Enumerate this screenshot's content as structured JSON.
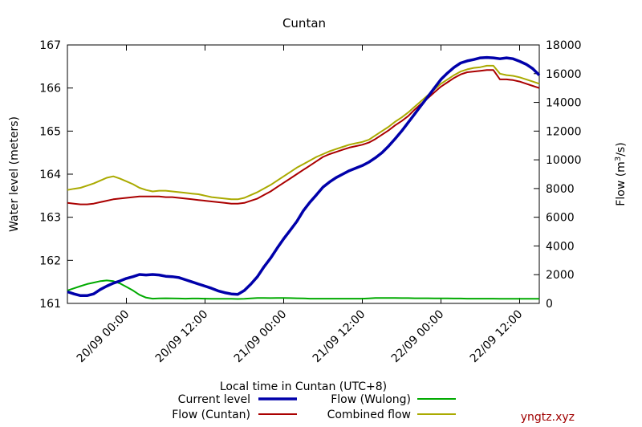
{
  "chart_data": {
    "type": "line",
    "title": "Cuntan",
    "xlabel": "Local time in Cuntan (UTC+8)",
    "ylabel_left": "Water level (meters)",
    "ylabel_right_prefix": "Flow (m",
    "ylabel_right_sup": "3",
    "ylabel_right_suffix": "/s)",
    "x_unit": "hours since 19/09 15:00",
    "x_range": [
      0,
      72
    ],
    "x_ticks": [
      {
        "x": 9,
        "label": "20/09 00:00"
      },
      {
        "x": 21,
        "label": "20/09 12:00"
      },
      {
        "x": 33,
        "label": "21/09 00:00"
      },
      {
        "x": 45,
        "label": "21/09 12:00"
      },
      {
        "x": 57,
        "label": "22/09 00:00"
      },
      {
        "x": 69,
        "label": "22/09 12:00"
      }
    ],
    "y_left_range": [
      161,
      167
    ],
    "y_left_ticks": [
      "161",
      "162",
      "163",
      "164",
      "165",
      "166",
      "167"
    ],
    "y_right_range": [
      0,
      18000
    ],
    "y_right_ticks": [
      "0",
      "2000",
      "4000",
      "6000",
      "8000",
      "10000",
      "12000",
      "14000",
      "16000",
      "18000"
    ],
    "grid": false,
    "legend_position": "bottom",
    "series": [
      {
        "name": "Current level",
        "axis": "left",
        "color": "#0000aa",
        "points": [
          [
            0,
            161.27
          ],
          [
            1,
            161.22
          ],
          [
            2,
            161.18
          ],
          [
            3,
            161.18
          ],
          [
            4,
            161.22
          ],
          [
            5,
            161.32
          ],
          [
            6,
            161.4
          ],
          [
            7,
            161.47
          ],
          [
            8,
            161.52
          ],
          [
            9,
            161.58
          ],
          [
            10,
            161.62
          ],
          [
            11,
            161.67
          ],
          [
            12,
            161.66
          ],
          [
            13,
            161.67
          ],
          [
            14,
            161.66
          ],
          [
            15,
            161.63
          ],
          [
            16,
            161.62
          ],
          [
            17,
            161.6
          ],
          [
            18,
            161.55
          ],
          [
            19,
            161.5
          ],
          [
            20,
            161.45
          ],
          [
            21,
            161.4
          ],
          [
            22,
            161.35
          ],
          [
            23,
            161.29
          ],
          [
            24,
            161.25
          ],
          [
            25,
            161.22
          ],
          [
            26,
            161.21
          ],
          [
            27,
            161.3
          ],
          [
            28,
            161.45
          ],
          [
            29,
            161.62
          ],
          [
            30,
            161.85
          ],
          [
            31,
            162.05
          ],
          [
            32,
            162.28
          ],
          [
            33,
            162.5
          ],
          [
            34,
            162.7
          ],
          [
            35,
            162.9
          ],
          [
            36,
            163.15
          ],
          [
            37,
            163.35
          ],
          [
            38,
            163.52
          ],
          [
            39,
            163.7
          ],
          [
            40,
            163.82
          ],
          [
            41,
            163.92
          ],
          [
            42,
            164.0
          ],
          [
            43,
            164.08
          ],
          [
            44,
            164.14
          ],
          [
            45,
            164.2
          ],
          [
            46,
            164.28
          ],
          [
            47,
            164.38
          ],
          [
            48,
            164.5
          ],
          [
            49,
            164.65
          ],
          [
            50,
            164.82
          ],
          [
            51,
            165.0
          ],
          [
            52,
            165.2
          ],
          [
            53,
            165.4
          ],
          [
            54,
            165.6
          ],
          [
            55,
            165.8
          ],
          [
            56,
            166.0
          ],
          [
            57,
            166.2
          ],
          [
            58,
            166.35
          ],
          [
            59,
            166.48
          ],
          [
            60,
            166.58
          ],
          [
            61,
            166.63
          ],
          [
            62,
            166.66
          ],
          [
            63,
            166.7
          ],
          [
            64,
            166.71
          ],
          [
            65,
            166.7
          ],
          [
            66,
            166.68
          ],
          [
            67,
            166.7
          ],
          [
            68,
            166.68
          ],
          [
            69,
            166.62
          ],
          [
            70,
            166.55
          ],
          [
            71,
            166.45
          ],
          [
            72,
            166.3
          ]
        ]
      },
      {
        "name": "Flow (Cuntan)",
        "axis": "right",
        "color": "#aa0000",
        "points": [
          [
            0,
            7000
          ],
          [
            1,
            6950
          ],
          [
            2,
            6900
          ],
          [
            3,
            6900
          ],
          [
            4,
            6950
          ],
          [
            5,
            7050
          ],
          [
            6,
            7150
          ],
          [
            7,
            7250
          ],
          [
            8,
            7300
          ],
          [
            9,
            7350
          ],
          [
            10,
            7400
          ],
          [
            11,
            7450
          ],
          [
            12,
            7450
          ],
          [
            13,
            7450
          ],
          [
            14,
            7450
          ],
          [
            15,
            7400
          ],
          [
            16,
            7400
          ],
          [
            17,
            7350
          ],
          [
            18,
            7300
          ],
          [
            19,
            7250
          ],
          [
            20,
            7200
          ],
          [
            21,
            7150
          ],
          [
            22,
            7100
          ],
          [
            23,
            7050
          ],
          [
            24,
            7000
          ],
          [
            25,
            6950
          ],
          [
            26,
            6950
          ],
          [
            27,
            7000
          ],
          [
            28,
            7150
          ],
          [
            29,
            7300
          ],
          [
            30,
            7550
          ],
          [
            31,
            7800
          ],
          [
            32,
            8100
          ],
          [
            33,
            8400
          ],
          [
            34,
            8700
          ],
          [
            35,
            9000
          ],
          [
            36,
            9300
          ],
          [
            37,
            9600
          ],
          [
            38,
            9900
          ],
          [
            39,
            10200
          ],
          [
            40,
            10400
          ],
          [
            41,
            10550
          ],
          [
            42,
            10700
          ],
          [
            43,
            10850
          ],
          [
            44,
            10950
          ],
          [
            45,
            11050
          ],
          [
            46,
            11200
          ],
          [
            47,
            11450
          ],
          [
            48,
            11750
          ],
          [
            49,
            12050
          ],
          [
            50,
            12400
          ],
          [
            51,
            12700
          ],
          [
            52,
            13050
          ],
          [
            53,
            13500
          ],
          [
            54,
            13900
          ],
          [
            55,
            14300
          ],
          [
            56,
            14700
          ],
          [
            57,
            15100
          ],
          [
            58,
            15400
          ],
          [
            59,
            15700
          ],
          [
            60,
            15950
          ],
          [
            61,
            16100
          ],
          [
            62,
            16150
          ],
          [
            63,
            16200
          ],
          [
            64,
            16250
          ],
          [
            65,
            16250
          ],
          [
            66,
            15600
          ],
          [
            67,
            15600
          ],
          [
            68,
            15550
          ],
          [
            69,
            15450
          ],
          [
            70,
            15300
          ],
          [
            71,
            15150
          ],
          [
            72,
            15000
          ]
        ]
      },
      {
        "name": "Flow (Wulong)",
        "axis": "right",
        "color": "#00aa00",
        "points": [
          [
            0,
            900
          ],
          [
            1,
            1050
          ],
          [
            2,
            1200
          ],
          [
            3,
            1350
          ],
          [
            4,
            1450
          ],
          [
            5,
            1550
          ],
          [
            6,
            1600
          ],
          [
            7,
            1550
          ],
          [
            8,
            1400
          ],
          [
            9,
            1150
          ],
          [
            10,
            900
          ],
          [
            11,
            600
          ],
          [
            12,
            400
          ],
          [
            13,
            330
          ],
          [
            14,
            350
          ],
          [
            15,
            360
          ],
          [
            16,
            350
          ],
          [
            17,
            340
          ],
          [
            18,
            330
          ],
          [
            19,
            340
          ],
          [
            20,
            340
          ],
          [
            21,
            330
          ],
          [
            22,
            320
          ],
          [
            23,
            320
          ],
          [
            24,
            320
          ],
          [
            25,
            320
          ],
          [
            26,
            310
          ],
          [
            27,
            320
          ],
          [
            28,
            350
          ],
          [
            29,
            380
          ],
          [
            30,
            380
          ],
          [
            31,
            370
          ],
          [
            32,
            380
          ],
          [
            33,
            380
          ],
          [
            34,
            370
          ],
          [
            35,
            360
          ],
          [
            36,
            350
          ],
          [
            37,
            330
          ],
          [
            38,
            330
          ],
          [
            39,
            330
          ],
          [
            40,
            330
          ],
          [
            41,
            330
          ],
          [
            42,
            330
          ],
          [
            43,
            330
          ],
          [
            44,
            330
          ],
          [
            45,
            330
          ],
          [
            46,
            350
          ],
          [
            47,
            380
          ],
          [
            48,
            380
          ],
          [
            49,
            380
          ],
          [
            50,
            380
          ],
          [
            51,
            370
          ],
          [
            52,
            370
          ],
          [
            53,
            360
          ],
          [
            54,
            360
          ],
          [
            55,
            360
          ],
          [
            56,
            350
          ],
          [
            57,
            350
          ],
          [
            58,
            350
          ],
          [
            59,
            340
          ],
          [
            60,
            340
          ],
          [
            61,
            330
          ],
          [
            62,
            330
          ],
          [
            63,
            330
          ],
          [
            64,
            330
          ],
          [
            65,
            330
          ],
          [
            66,
            320
          ],
          [
            67,
            320
          ],
          [
            68,
            320
          ],
          [
            69,
            320
          ],
          [
            70,
            320
          ],
          [
            71,
            320
          ],
          [
            72,
            320
          ]
        ]
      },
      {
        "name": "Combined flow",
        "axis": "right",
        "color": "#aaaa00",
        "points": [
          [
            0,
            7900
          ],
          [
            1,
            7980
          ],
          [
            2,
            8050
          ],
          [
            3,
            8200
          ],
          [
            4,
            8350
          ],
          [
            5,
            8550
          ],
          [
            6,
            8750
          ],
          [
            7,
            8850
          ],
          [
            8,
            8700
          ],
          [
            9,
            8500
          ],
          [
            10,
            8300
          ],
          [
            11,
            8050
          ],
          [
            12,
            7900
          ],
          [
            13,
            7800
          ],
          [
            14,
            7850
          ],
          [
            15,
            7850
          ],
          [
            16,
            7800
          ],
          [
            17,
            7750
          ],
          [
            18,
            7700
          ],
          [
            19,
            7650
          ],
          [
            20,
            7600
          ],
          [
            21,
            7500
          ],
          [
            22,
            7400
          ],
          [
            23,
            7350
          ],
          [
            24,
            7300
          ],
          [
            25,
            7250
          ],
          [
            26,
            7250
          ],
          [
            27,
            7350
          ],
          [
            28,
            7550
          ],
          [
            29,
            7750
          ],
          [
            30,
            8000
          ],
          [
            31,
            8250
          ],
          [
            32,
            8550
          ],
          [
            33,
            8850
          ],
          [
            34,
            9150
          ],
          [
            35,
            9450
          ],
          [
            36,
            9700
          ],
          [
            37,
            9950
          ],
          [
            38,
            10200
          ],
          [
            39,
            10400
          ],
          [
            40,
            10600
          ],
          [
            41,
            10750
          ],
          [
            42,
            10900
          ],
          [
            43,
            11050
          ],
          [
            44,
            11150
          ],
          [
            45,
            11250
          ],
          [
            46,
            11400
          ],
          [
            47,
            11700
          ],
          [
            48,
            12000
          ],
          [
            49,
            12300
          ],
          [
            50,
            12650
          ],
          [
            51,
            12950
          ],
          [
            52,
            13300
          ],
          [
            53,
            13700
          ],
          [
            54,
            14100
          ],
          [
            55,
            14500
          ],
          [
            56,
            14900
          ],
          [
            57,
            15300
          ],
          [
            58,
            15600
          ],
          [
            59,
            15900
          ],
          [
            60,
            16150
          ],
          [
            61,
            16300
          ],
          [
            62,
            16400
          ],
          [
            63,
            16450
          ],
          [
            64,
            16550
          ],
          [
            65,
            16550
          ],
          [
            66,
            16000
          ],
          [
            67,
            15900
          ],
          [
            68,
            15850
          ],
          [
            69,
            15750
          ],
          [
            70,
            15600
          ],
          [
            71,
            15450
          ],
          [
            72,
            15300
          ]
        ]
      }
    ]
  },
  "credit": "yngtz.xyz"
}
